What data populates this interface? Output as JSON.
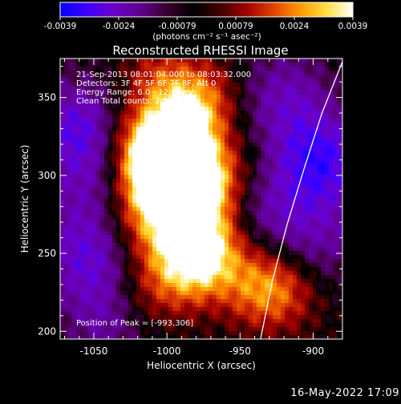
{
  "colorbar": {
    "ticks": [
      "-0.0039",
      "-0.0024",
      "-0.00079",
      "0.00079",
      "0.0024",
      "0.0039"
    ],
    "unit_label": "(photons cm⁻² s⁻¹ asec⁻²)",
    "stops": [
      "#0000ff",
      "#4000ff",
      "#6a00c8",
      "#600090",
      "#3a0030",
      "#000000",
      "#400000",
      "#a00000",
      "#e04000",
      "#ff9800",
      "#ffe040",
      "#ffffff"
    ]
  },
  "chart_data": {
    "type": "heatmap",
    "title": "Reconstructed RHESSI Image",
    "xlabel": "Heliocentric X (arcsec)",
    "ylabel": "Heliocentric Y (arcsec)",
    "xlim": [
      -1073,
      -880
    ],
    "ylim": [
      195,
      375
    ],
    "x_ticks": [
      "-1050",
      "-1000",
      "-950",
      "-900"
    ],
    "x_tick_values": [
      -1050,
      -1000,
      -950,
      -900
    ],
    "y_ticks": [
      "200",
      "250",
      "300",
      "350"
    ],
    "y_tick_values": [
      200,
      250,
      300,
      350
    ],
    "annotations": [
      "21-Sep-2013 08:01:04.000 to 08:03:32.000",
      "Detectors: 3F 4F 5F 6F 7F 8F, Att 0",
      "Energy Range: 6.0 - 12.0 keV",
      "Clean     Total counts: 2.24E+04"
    ],
    "peak_label": "Position of Peak = [-993,306]",
    "peak_position": [
      -993,
      306
    ],
    "emission_sources": [
      {
        "x": -993,
        "y": 306,
        "intensity": 1.0
      },
      {
        "x": -1005,
        "y": 298,
        "intensity": 0.85
      },
      {
        "x": -980,
        "y": 288,
        "intensity": 0.8
      },
      {
        "x": -990,
        "y": 330,
        "intensity": 0.7
      },
      {
        "x": -1020,
        "y": 320,
        "intensity": 0.55
      },
      {
        "x": -972,
        "y": 255,
        "intensity": 0.72
      },
      {
        "x": -985,
        "y": 240,
        "intensity": 0.6
      },
      {
        "x": -1000,
        "y": 265,
        "intensity": 0.55
      },
      {
        "x": -975,
        "y": 350,
        "intensity": 0.45
      },
      {
        "x": -1005,
        "y": 360,
        "intensity": 0.4
      },
      {
        "x": -1015,
        "y": 225,
        "intensity": 0.35
      },
      {
        "x": -955,
        "y": 300,
        "intensity": 0.3
      },
      {
        "x": -940,
        "y": 230,
        "intensity": 0.5
      },
      {
        "x": -920,
        "y": 225,
        "intensity": 0.4
      },
      {
        "x": -1030,
        "y": 275,
        "intensity": 0.3
      }
    ],
    "negative_regions": [
      {
        "x": -1060,
        "y": 330,
        "intensity": 0.65
      },
      {
        "x": -1055,
        "y": 250,
        "intensity": 0.55
      },
      {
        "x": -1050,
        "y": 290,
        "intensity": 0.35
      },
      {
        "x": -895,
        "y": 310,
        "intensity": 0.75
      },
      {
        "x": -920,
        "y": 350,
        "intensity": 0.45
      },
      {
        "x": -935,
        "y": 280,
        "intensity": 0.4
      },
      {
        "x": -1040,
        "y": 210,
        "intensity": 0.4
      },
      {
        "x": -895,
        "y": 260,
        "intensity": 0.35
      }
    ],
    "limb_curve": [
      {
        "x": -936,
        "y": 195
      },
      {
        "x": -928,
        "y": 232
      },
      {
        "x": -918,
        "y": 268
      },
      {
        "x": -906,
        "y": 305
      },
      {
        "x": -894,
        "y": 340
      },
      {
        "x": -880,
        "y": 373
      }
    ]
  },
  "footer": {
    "date": "16-May-2022 17:09"
  }
}
